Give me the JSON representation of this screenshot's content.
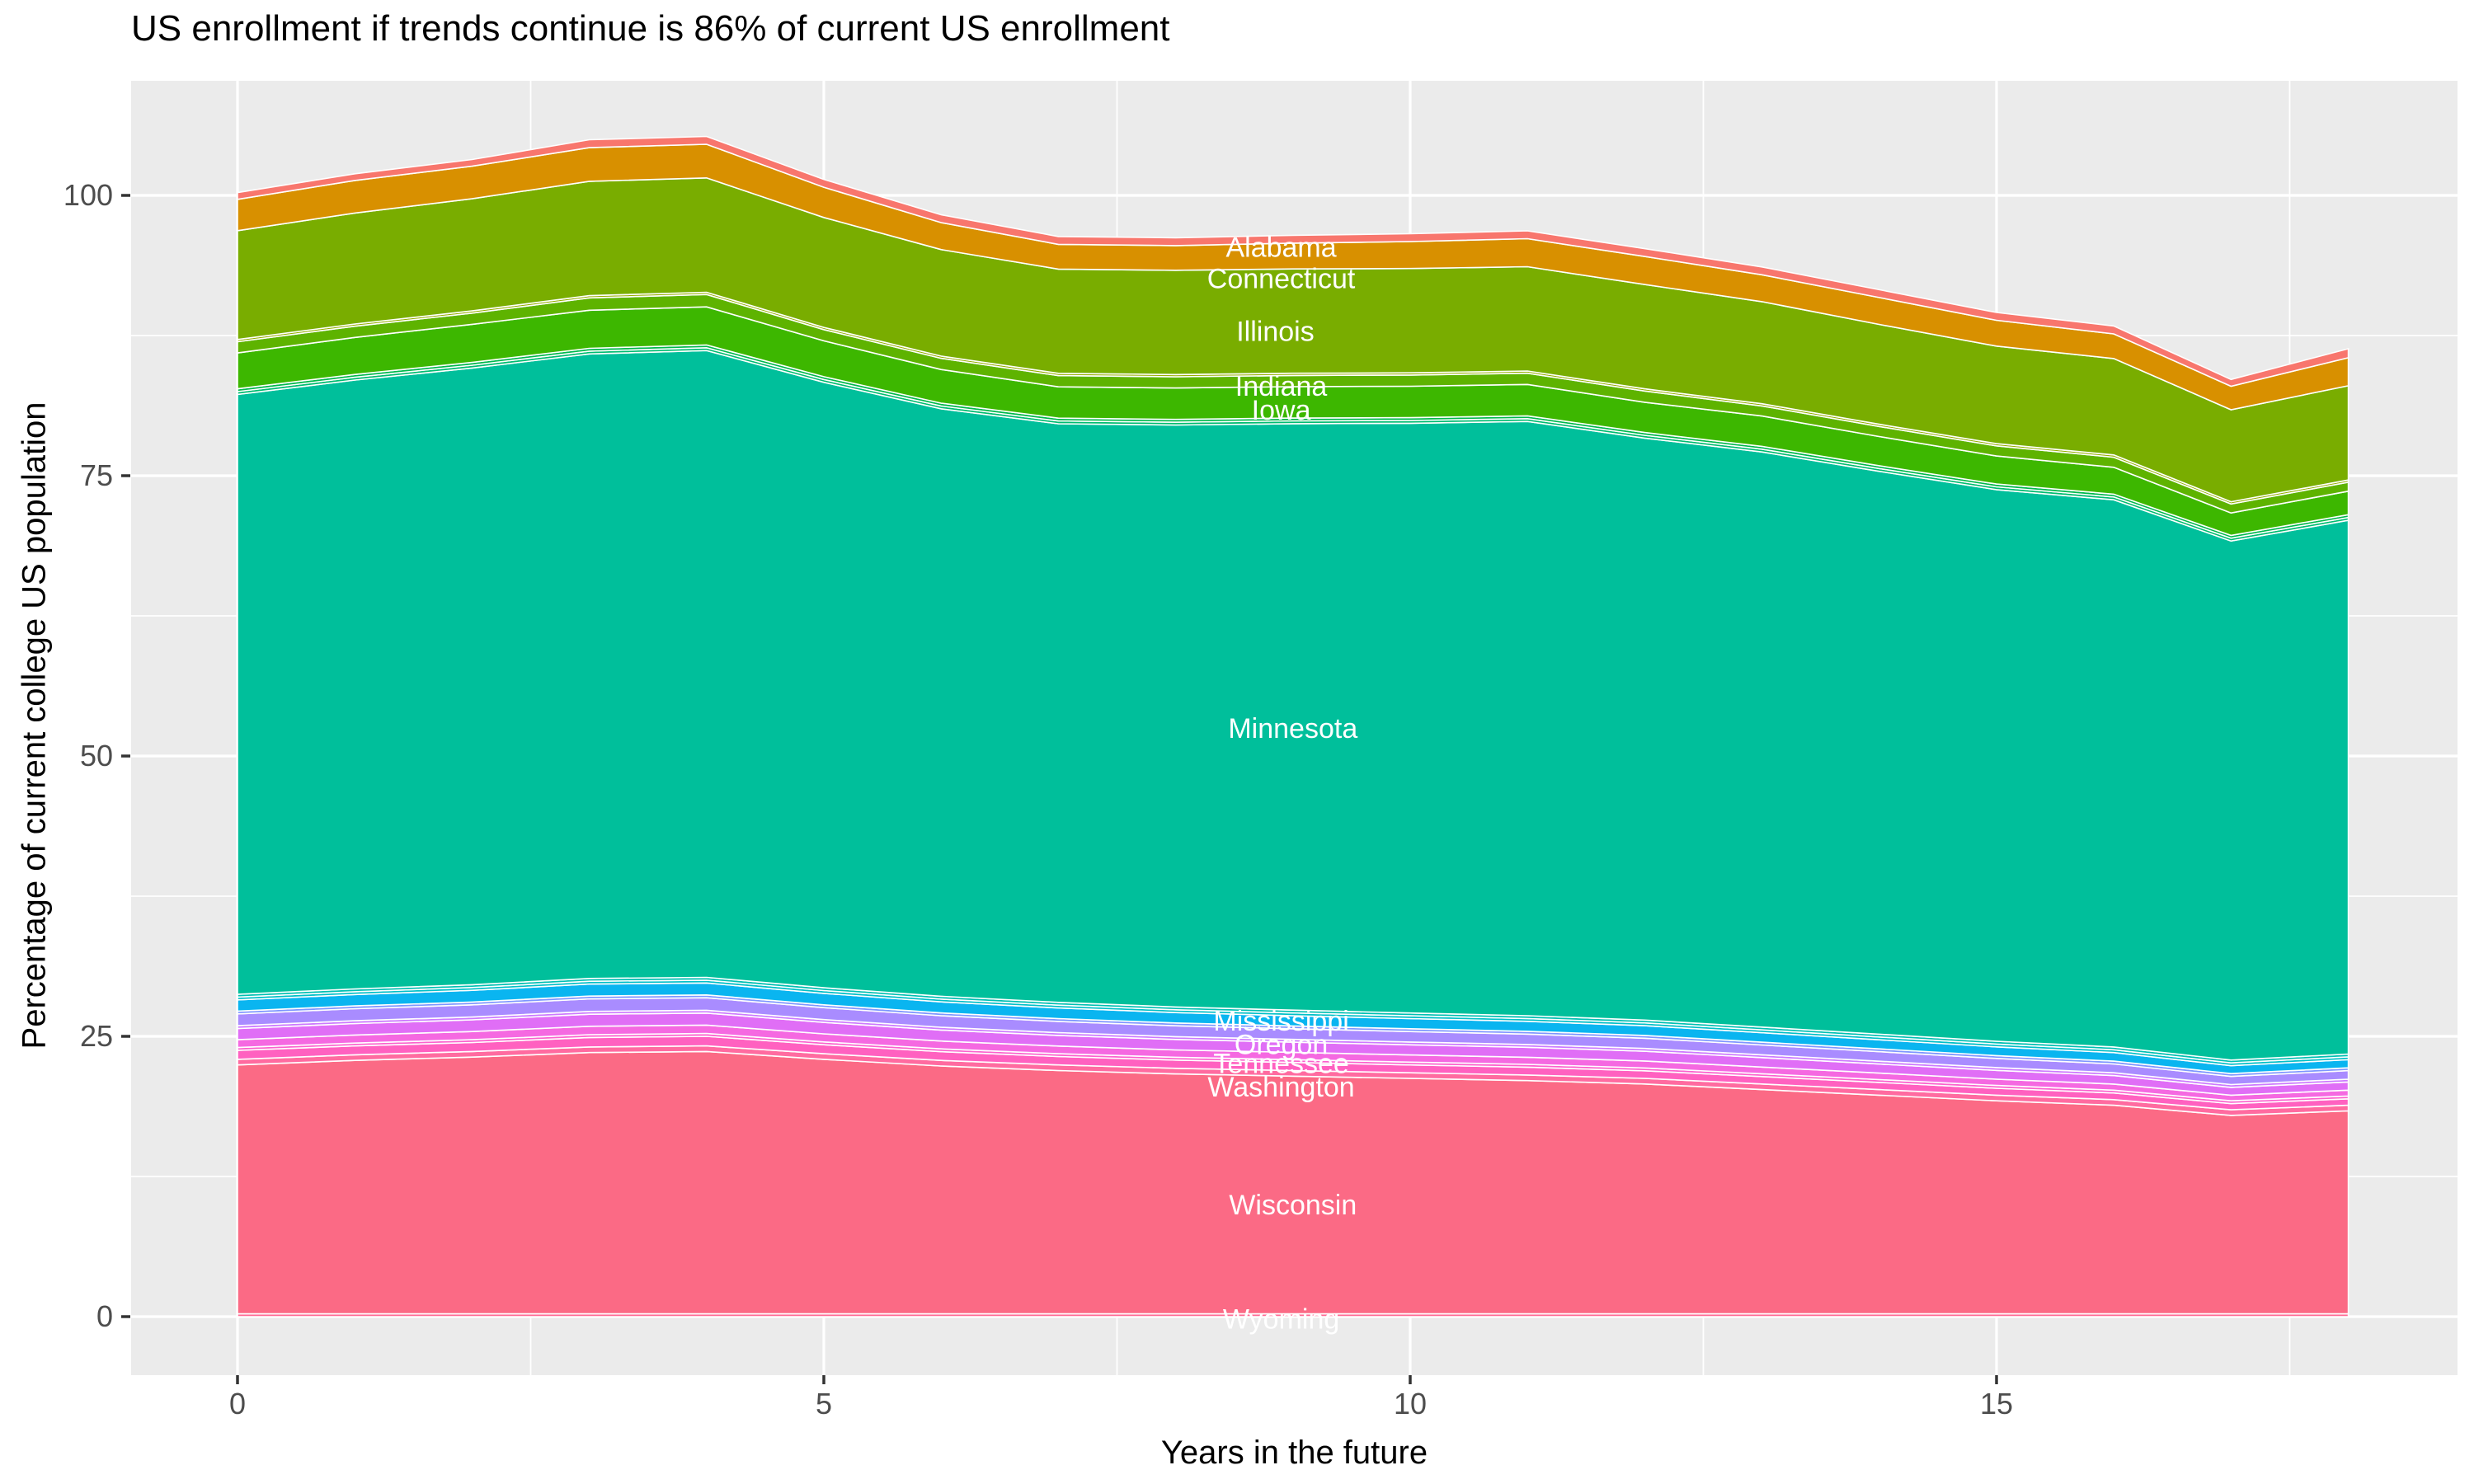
{
  "title": "US enrollment if trends continue is 86% of current US enrollment",
  "x_axis": {
    "title": "Years in the future",
    "tick_labels": [
      "0",
      "5",
      "10",
      "15"
    ],
    "tick_values": [
      0,
      5,
      10,
      15
    ],
    "minor_tick_values": [
      2.5,
      7.5,
      12.5,
      17.5
    ]
  },
  "y_axis": {
    "title": "Percentage of current college US population",
    "tick_labels": [
      "0",
      "25",
      "50",
      "75",
      "100"
    ],
    "tick_values": [
      0,
      25,
      50,
      75,
      100
    ],
    "minor_tick_values": [
      12.5,
      37.5,
      62.5,
      87.5
    ]
  },
  "colors": {
    "panel_background": "#EBEBEB",
    "grid": "#FFFFFF",
    "tick_mark": "#333333",
    "tick_label": "#4D4D4D",
    "area_border": "#FFFFFF",
    "area_label_text": "#FFFFFF"
  },
  "chart_data": {
    "type": "area",
    "stacked": true,
    "title": "US enrollment if trends continue is 86% of current US enrollment",
    "xlabel": "Years in the future",
    "ylabel": "Percentage of current college US population",
    "xlim": [
      -0.9,
      18.9
    ],
    "ylim": [
      -5.2,
      110.2
    ],
    "grid": true,
    "legend_position": "none",
    "x": [
      0,
      1,
      2,
      3,
      4,
      5,
      6,
      7,
      8,
      9,
      10,
      11,
      12,
      13,
      14,
      15,
      16,
      17,
      18
    ],
    "series": [
      {
        "name": "Wyoming",
        "labeled": true,
        "color": "#FF6B94",
        "values": [
          0.25,
          0.25,
          0.25,
          0.25,
          0.25,
          0.25,
          0.25,
          0.25,
          0.25,
          0.25,
          0.25,
          0.25,
          0.25,
          0.25,
          0.25,
          0.25,
          0.25,
          0.25,
          0.25
        ]
      },
      {
        "name": "Wisconsin",
        "labeled": true,
        "color": "#FB6A85",
        "values": [
          22.2,
          22.6,
          22.9,
          23.3,
          23.4,
          22.7,
          22.1,
          21.7,
          21.4,
          21.2,
          21.0,
          20.8,
          20.5,
          20.0,
          19.5,
          19.0,
          18.6,
          17.7,
          18.1
        ]
      },
      {
        "name": "",
        "labeled": false,
        "color": "#FF6BA0",
        "values": [
          0.5,
          0.5,
          0.5,
          0.5,
          0.5,
          0.5,
          0.5,
          0.5,
          0.5,
          0.5,
          0.5,
          0.5,
          0.5,
          0.5,
          0.5,
          0.5,
          0.5,
          0.5,
          0.5
        ]
      },
      {
        "name": "Washington",
        "labeled": true,
        "color": "#FF61C0",
        "values": [
          0.8,
          0.8,
          0.8,
          0.85,
          0.85,
          0.8,
          0.78,
          0.75,
          0.73,
          0.72,
          0.7,
          0.7,
          0.68,
          0.66,
          0.64,
          0.62,
          0.6,
          0.55,
          0.58
        ]
      },
      {
        "name": "",
        "labeled": false,
        "color": "#FC61CE",
        "values": [
          0.25,
          0.25,
          0.25,
          0.25,
          0.25,
          0.25,
          0.25,
          0.25,
          0.25,
          0.25,
          0.25,
          0.25,
          0.25,
          0.25,
          0.25,
          0.25,
          0.25,
          0.25,
          0.25
        ]
      },
      {
        "name": "",
        "labeled": false,
        "color": "#F569E1",
        "values": [
          0.7,
          0.72,
          0.73,
          0.75,
          0.75,
          0.72,
          0.7,
          0.68,
          0.66,
          0.65,
          0.64,
          0.63,
          0.62,
          0.6,
          0.58,
          0.56,
          0.54,
          0.5,
          0.52
        ]
      },
      {
        "name": "Tennessee",
        "labeled": true,
        "color": "#E06EF6",
        "values": [
          1.0,
          1.02,
          1.04,
          1.07,
          1.07,
          1.02,
          0.98,
          0.95,
          0.93,
          0.91,
          0.9,
          0.89,
          0.87,
          0.84,
          0.81,
          0.78,
          0.76,
          0.7,
          0.73
        ]
      },
      {
        "name": "",
        "labeled": false,
        "color": "#CD79FF",
        "values": [
          0.25,
          0.25,
          0.25,
          0.25,
          0.25,
          0.25,
          0.25,
          0.25,
          0.25,
          0.25,
          0.25,
          0.25,
          0.25,
          0.25,
          0.25,
          0.25,
          0.25,
          0.25,
          0.25
        ]
      },
      {
        "name": "Oregon",
        "labeled": true,
        "color": "#A98CFF",
        "values": [
          1.05,
          1.07,
          1.09,
          1.12,
          1.12,
          1.07,
          1.03,
          1.0,
          0.97,
          0.95,
          0.94,
          0.93,
          0.91,
          0.88,
          0.85,
          0.82,
          0.79,
          0.73,
          0.76
        ]
      },
      {
        "name": "",
        "labeled": false,
        "color": "#7E96FF",
        "values": [
          0.25,
          0.25,
          0.25,
          0.25,
          0.25,
          0.25,
          0.25,
          0.25,
          0.25,
          0.25,
          0.25,
          0.25,
          0.25,
          0.25,
          0.25,
          0.25,
          0.25,
          0.25,
          0.25
        ]
      },
      {
        "name": "Mississippi",
        "labeled": true,
        "color": "#0AB5F0",
        "values": [
          1.0,
          1.02,
          1.04,
          1.07,
          1.07,
          1.02,
          0.98,
          0.95,
          0.93,
          0.91,
          0.9,
          0.89,
          0.87,
          0.84,
          0.81,
          0.78,
          0.76,
          0.7,
          0.73
        ]
      },
      {
        "name": "",
        "labeled": false,
        "color": "#00C0C8",
        "values": [
          0.25,
          0.25,
          0.25,
          0.25,
          0.25,
          0.25,
          0.25,
          0.25,
          0.25,
          0.25,
          0.25,
          0.25,
          0.25,
          0.25,
          0.25,
          0.25,
          0.25,
          0.25,
          0.25
        ]
      },
      {
        "name": "",
        "labeled": false,
        "color": "#00C0B2",
        "values": [
          0.25,
          0.25,
          0.25,
          0.25,
          0.25,
          0.25,
          0.25,
          0.25,
          0.25,
          0.25,
          0.25,
          0.25,
          0.25,
          0.25,
          0.25,
          0.25,
          0.25,
          0.25,
          0.25
        ]
      },
      {
        "name": "Minnesota",
        "labeled": true,
        "color": "#00BF9B",
        "values": [
          53.5,
          54.3,
          55.0,
          55.7,
          55.9,
          54.0,
          52.4,
          51.6,
          51.9,
          52.3,
          52.6,
          53.0,
          51.9,
          51.3,
          50.2,
          49.2,
          48.8,
          46.3,
          47.6
        ]
      },
      {
        "name": "",
        "labeled": false,
        "color": "#00BD71",
        "values": [
          0.25,
          0.25,
          0.25,
          0.25,
          0.25,
          0.25,
          0.25,
          0.25,
          0.25,
          0.25,
          0.25,
          0.25,
          0.25,
          0.25,
          0.25,
          0.25,
          0.25,
          0.25,
          0.25
        ]
      },
      {
        "name": "",
        "labeled": false,
        "color": "#00B94D",
        "values": [
          0.25,
          0.25,
          0.25,
          0.25,
          0.25,
          0.25,
          0.25,
          0.25,
          0.25,
          0.25,
          0.25,
          0.25,
          0.25,
          0.25,
          0.25,
          0.25,
          0.25,
          0.25,
          0.25
        ]
      },
      {
        "name": "Iowa",
        "labeled": true,
        "color": "#3DB700",
        "values": [
          3.2,
          3.3,
          3.4,
          3.4,
          3.4,
          3.2,
          3.0,
          2.8,
          2.8,
          2.8,
          2.8,
          2.8,
          2.7,
          2.7,
          2.6,
          2.5,
          2.4,
          2.0,
          2.1
        ]
      },
      {
        "name": "Indiana",
        "labeled": true,
        "color": "#5EB300",
        "values": [
          1.0,
          1.0,
          1.0,
          1.1,
          1.1,
          1.0,
          1.0,
          1.0,
          1.0,
          1.0,
          1.0,
          1.0,
          1.0,
          0.9,
          0.9,
          0.9,
          0.9,
          0.8,
          0.8
        ]
      },
      {
        "name": "",
        "labeled": false,
        "color": "#94B000",
        "values": [
          0.2,
          0.2,
          0.2,
          0.2,
          0.2,
          0.2,
          0.2,
          0.2,
          0.2,
          0.2,
          0.2,
          0.2,
          0.2,
          0.2,
          0.2,
          0.2,
          0.2,
          0.2,
          0.2
        ]
      },
      {
        "name": "Illinois",
        "labeled": true,
        "color": "#79AD00",
        "values": [
          9.7,
          9.9,
          10.0,
          10.2,
          10.2,
          9.8,
          9.5,
          9.3,
          9.3,
          9.3,
          9.3,
          9.3,
          9.3,
          9.1,
          8.9,
          8.7,
          8.6,
          8.2,
          8.4
        ]
      },
      {
        "name": "Connecticut",
        "labeled": true,
        "color": "#D89000",
        "values": [
          2.8,
          2.9,
          2.9,
          3.0,
          3.0,
          2.7,
          2.4,
          2.2,
          2.2,
          2.3,
          2.4,
          2.5,
          2.5,
          2.4,
          2.4,
          2.3,
          2.2,
          2.1,
          2.5
        ]
      },
      {
        "name": "Alabama",
        "labeled": true,
        "color": "#F8766D",
        "values": [
          0.6,
          0.6,
          0.6,
          0.7,
          0.7,
          0.7,
          0.7,
          0.7,
          0.7,
          0.7,
          0.7,
          0.7,
          0.7,
          0.7,
          0.7,
          0.7,
          0.7,
          0.6,
          0.8
        ]
      }
    ],
    "area_labels": [
      {
        "text": "Alabama",
        "x": 8.9,
        "y": 95.4
      },
      {
        "text": "Connecticut",
        "x": 8.9,
        "y": 92.6
      },
      {
        "text": "Illinois",
        "x": 8.85,
        "y": 87.9
      },
      {
        "text": "Indiana",
        "x": 8.9,
        "y": 83.0
      },
      {
        "text": "Iowa",
        "x": 8.9,
        "y": 80.9
      },
      {
        "text": "Minnesota",
        "x": 9.0,
        "y": 52.5
      },
      {
        "text": "Mississippi",
        "x": 8.9,
        "y": 26.4
      },
      {
        "text": "Oregon",
        "x": 8.9,
        "y": 24.3
      },
      {
        "text": "Tennessee",
        "x": 8.9,
        "y": 22.6
      },
      {
        "text": "Washington",
        "x": 8.9,
        "y": 20.5
      },
      {
        "text": "Wisconsin",
        "x": 9.0,
        "y": 10.0
      },
      {
        "text": "Wyoming",
        "x": 8.9,
        "y": -0.2
      }
    ]
  }
}
